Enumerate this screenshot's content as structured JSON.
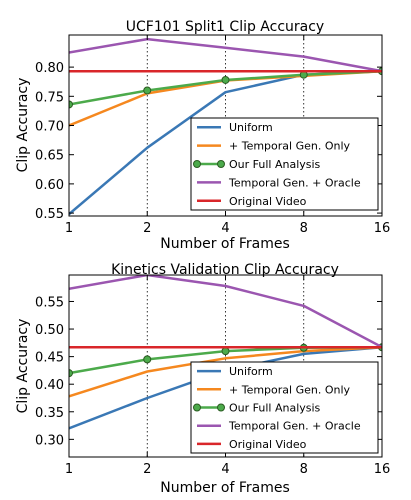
{
  "chart_data": [
    {
      "type": "line",
      "title": "UCF101 Split1 Clip Accuracy",
      "xlabel": "Number of Frames",
      "ylabel": "Clip Accuracy",
      "x_scale": "log2",
      "x": [
        1,
        2,
        4,
        8,
        16
      ],
      "x_tick_labels": [
        "1",
        "2",
        "4",
        "8",
        "16"
      ],
      "ylim": [
        0.545,
        0.855
      ],
      "y_ticks": [
        0.55,
        0.6,
        0.65,
        0.7,
        0.75,
        0.8
      ],
      "y_tick_labels": [
        "0.55",
        "0.60",
        "0.65",
        "0.70",
        "0.75",
        "0.80"
      ],
      "grid": "vertical dotted at x ticks",
      "legend_position": "lower-right",
      "series": [
        {
          "name": "Uniform",
          "color": "#3a78b5",
          "marker": false,
          "values": [
            0.548,
            0.662,
            0.757,
            0.787,
            0.793
          ]
        },
        {
          "name": "+ Temporal Gen. Only",
          "color": "#f5881f",
          "marker": false,
          "values": [
            0.7,
            0.755,
            0.777,
            0.785,
            0.793
          ]
        },
        {
          "name": "Our Full Analysis",
          "color": "#4caa4b",
          "marker": true,
          "values": [
            0.736,
            0.76,
            0.778,
            0.787,
            0.793
          ]
        },
        {
          "name": "Temporal Gen. + Oracle",
          "color": "#9b56b0",
          "marker": false,
          "values": [
            0.825,
            0.848,
            0.833,
            0.818,
            0.793
          ]
        },
        {
          "name": "Original Video",
          "color": "#d9262a",
          "marker": false,
          "values": [
            0.793,
            0.793,
            0.793,
            0.793,
            0.793
          ]
        }
      ]
    },
    {
      "type": "line",
      "title": "Kinetics Validation Clip Accuracy",
      "xlabel": "Number of Frames",
      "ylabel": "Clip Accuracy",
      "x_scale": "log2",
      "x": [
        1,
        2,
        4,
        8,
        16
      ],
      "x_tick_labels": [
        "1",
        "2",
        "4",
        "8",
        "16"
      ],
      "ylim": [
        0.268,
        0.598
      ],
      "y_ticks": [
        0.3,
        0.35,
        0.4,
        0.45,
        0.5,
        0.55
      ],
      "y_tick_labels": [
        "0.30",
        "0.35",
        "0.40",
        "0.45",
        "0.50",
        "0.55"
      ],
      "grid": "vertical dotted at x ticks",
      "legend_position": "lower-right",
      "series": [
        {
          "name": "Uniform",
          "color": "#3a78b5",
          "marker": false,
          "values": [
            0.32,
            0.375,
            0.425,
            0.455,
            0.467
          ]
        },
        {
          "name": "+ Temporal Gen. Only",
          "color": "#f5881f",
          "marker": false,
          "values": [
            0.378,
            0.423,
            0.447,
            0.46,
            0.467
          ]
        },
        {
          "name": "Our Full Analysis",
          "color": "#4caa4b",
          "marker": true,
          "values": [
            0.42,
            0.445,
            0.46,
            0.466,
            0.467
          ]
        },
        {
          "name": "Temporal Gen. + Oracle",
          "color": "#9b56b0",
          "marker": false,
          "values": [
            0.573,
            0.598,
            0.578,
            0.542,
            0.467
          ]
        },
        {
          "name": "Original Video",
          "color": "#d9262a",
          "marker": false,
          "values": [
            0.467,
            0.467,
            0.467,
            0.467,
            0.467
          ]
        }
      ]
    }
  ]
}
